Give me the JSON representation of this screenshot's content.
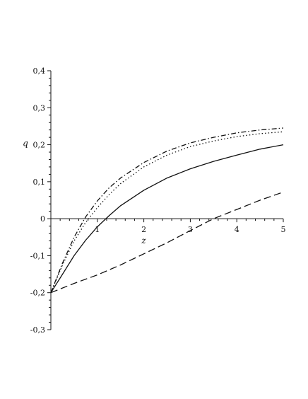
{
  "chart_data": {
    "type": "line",
    "title": "",
    "xlabel": "z",
    "ylabel": "q",
    "xlim": [
      0,
      5
    ],
    "ylim": [
      -0.3,
      0.4
    ],
    "x_ticks": [
      1,
      2,
      3,
      4,
      5
    ],
    "x_tick_labels": [
      "1",
      "2",
      "3",
      "4",
      "5"
    ],
    "y_ticks": [
      -0.3,
      -0.2,
      -0.1,
      0,
      0.1,
      0.2,
      0.3,
      0.4
    ],
    "y_tick_labels": [
      "-0,3",
      "-0,2",
      "-0,1",
      "0",
      "0,1",
      "0,2",
      "0,3",
      "0,4"
    ],
    "grid": false,
    "legend": "none",
    "color": "#111111",
    "series": [
      {
        "style": "solid",
        "x": [
          0,
          0.25,
          0.5,
          0.75,
          1,
          1.25,
          1.5,
          2,
          2.5,
          3,
          3.5,
          4,
          4.5,
          5
        ],
        "y": [
          -0.2,
          -0.15,
          -0.1,
          -0.058,
          -0.022,
          0.008,
          0.035,
          0.077,
          0.11,
          0.135,
          0.155,
          0.172,
          0.188,
          0.2
        ]
      },
      {
        "style": "dotted",
        "x": [
          0,
          0.25,
          0.5,
          0.75,
          1,
          1.25,
          1.5,
          2,
          2.5,
          3,
          3.5,
          4,
          4.5,
          5
        ],
        "y": [
          -0.2,
          -0.125,
          -0.06,
          -0.01,
          0.03,
          0.065,
          0.095,
          0.14,
          0.172,
          0.195,
          0.21,
          0.222,
          0.23,
          0.235
        ]
      },
      {
        "style": "dash-dot",
        "x": [
          0,
          0.25,
          0.5,
          0.75,
          1,
          1.25,
          1.5,
          2,
          2.5,
          3,
          3.5,
          4,
          4.5,
          5
        ],
        "y": [
          -0.2,
          -0.12,
          -0.05,
          0.005,
          0.048,
          0.083,
          0.11,
          0.152,
          0.183,
          0.205,
          0.22,
          0.232,
          0.24,
          0.245
        ]
      },
      {
        "style": "dashed",
        "x": [
          0,
          0.5,
          1,
          1.5,
          2,
          2.5,
          3,
          3.5,
          4,
          4.5,
          5
        ],
        "y": [
          -0.2,
          -0.175,
          -0.152,
          -0.125,
          -0.095,
          -0.065,
          -0.032,
          0,
          0.025,
          0.05,
          0.072
        ]
      }
    ]
  }
}
